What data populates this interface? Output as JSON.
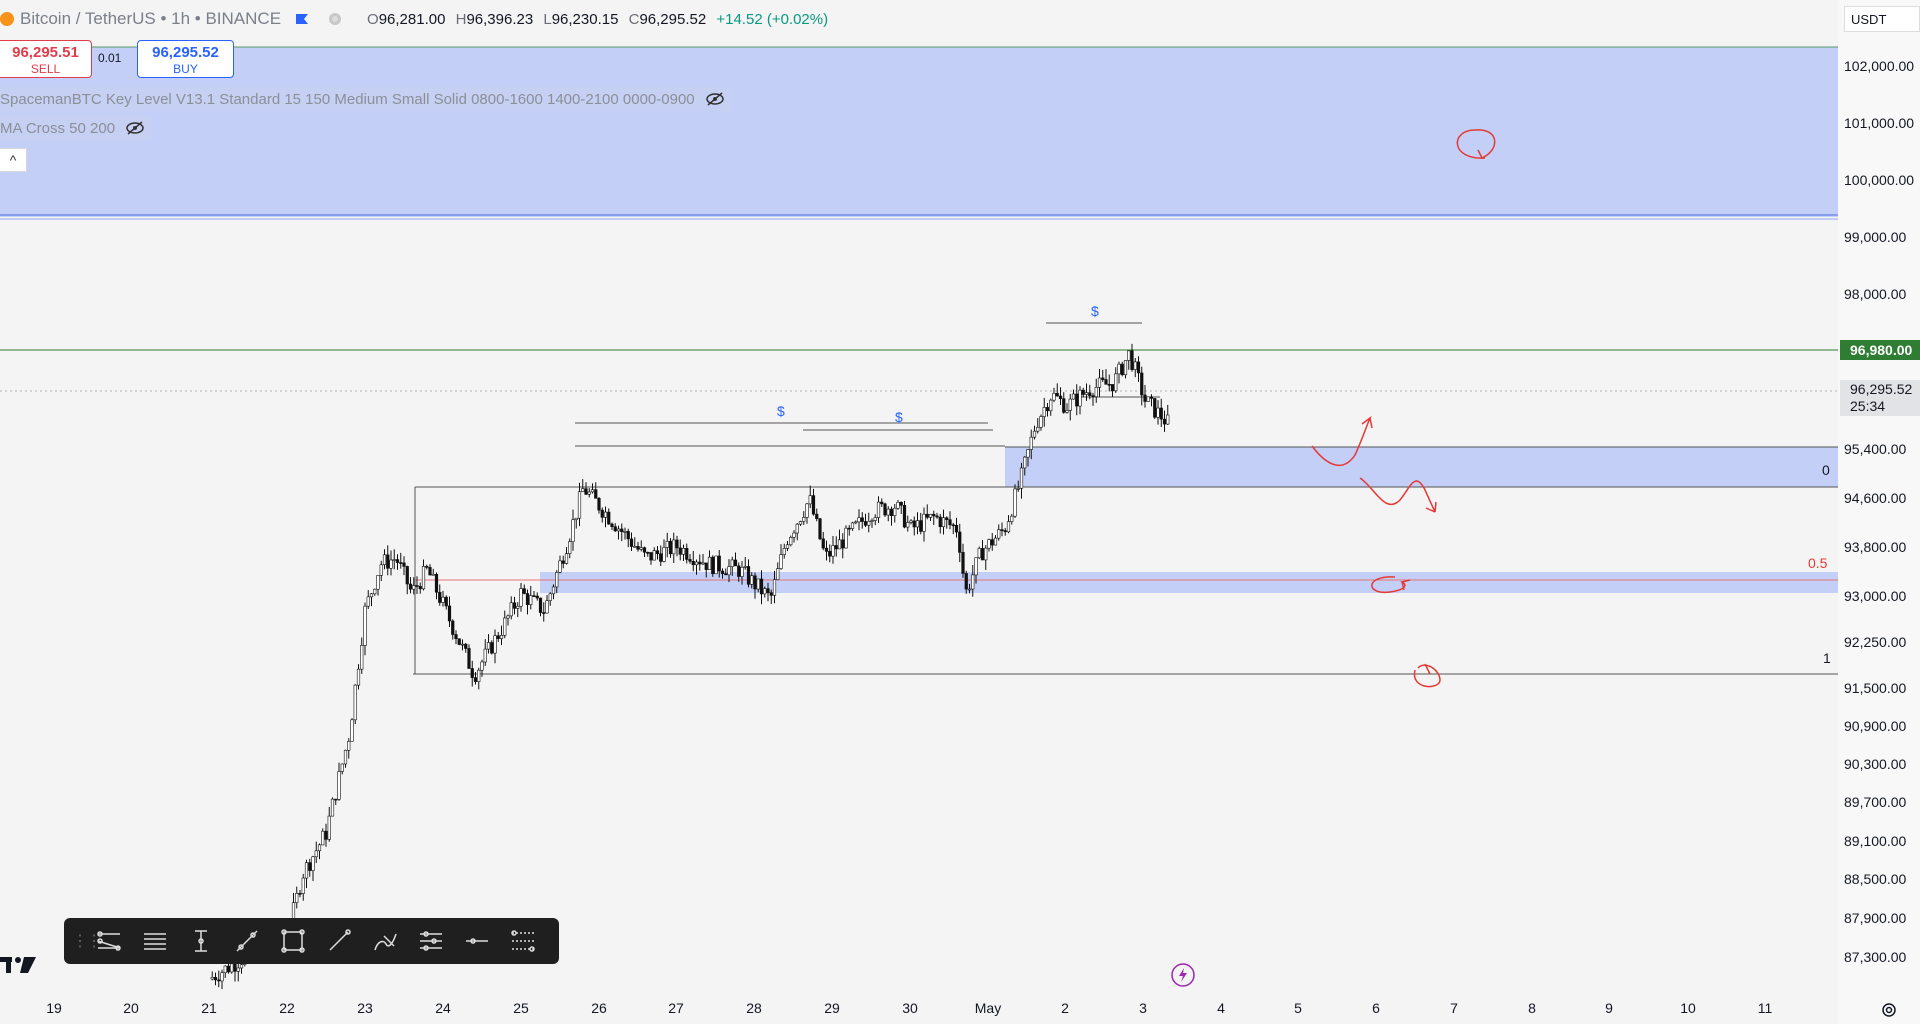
{
  "header": {
    "symbol_title": "Bitcoin / TetherUS • 1h • BINANCE",
    "ohlc": {
      "o_key": "O",
      "o_val": "96,281.00",
      "h_key": "H",
      "h_val": "96,396.23",
      "l_key": "L",
      "l_val": "96,230.15",
      "c_key": "C",
      "c_val": "96,295.52",
      "change": "+14.52 (+0.02%)"
    }
  },
  "trade": {
    "sell_price": "96,295.51",
    "sell_label": "SELL",
    "spread": "0.01",
    "buy_price": "96,295.52",
    "buy_label": "BUY"
  },
  "indicators": {
    "key_level": "SpacemanBTC Key Level V13.1 Standard 15 150 Medium Small Solid 0800-1600 1400-2100 0000-0900",
    "ma_cross": "MA Cross 50 200"
  },
  "collapse_glyph": "^",
  "price_axis": {
    "currency": "USDT",
    "labels": [
      "102,000.00",
      "101,000.00",
      "100,000.00",
      "99,000.00",
      "98,000.00",
      "95,400.00",
      "94,600.00",
      "93,800.00",
      "93,000.00",
      "92,250.00",
      "91,500.00",
      "90,900.00",
      "90,300.00",
      "89,700.00",
      "89,100.00",
      "88,500.00",
      "87,900.00",
      "87,300.00"
    ],
    "level_tag": "96,980.00",
    "last_price": "96,295.52",
    "countdown": "25:34"
  },
  "time_axis": {
    "labels": [
      "19",
      "20",
      "21",
      "22",
      "23",
      "24",
      "25",
      "26",
      "27",
      "28",
      "29",
      "30",
      "May",
      "2",
      "3",
      "4",
      "5",
      "6",
      "7",
      "8",
      "9",
      "10",
      "11"
    ]
  },
  "fib_labels": {
    "zero": "0",
    "half": "0.5",
    "one": "1"
  },
  "liquidity_marks": [
    "$",
    "$",
    "$"
  ],
  "colors": {
    "zone_fill": "#c3cff7",
    "up_candle": "#ffffff",
    "down_candle": "#111111",
    "green_level": "#2e7d32",
    "drawing_red": "#e53935",
    "dollar_blue": "#2962ff"
  },
  "toolbar": {
    "tools": [
      "multi-line-icon",
      "horizontal-lines-icon",
      "vertical-cursor-icon",
      "trend-line-icon",
      "rectangle-icon",
      "ray-icon",
      "brush-icon",
      "levels-icon",
      "horizontal-line-icon",
      "fib-settings-icon"
    ]
  },
  "chart_data": {
    "type": "candlestick",
    "x_unit": "day",
    "ylim": [
      86700,
      102600
    ],
    "series_closes": [
      {
        "x": 21.0,
        "price": 86800
      },
      {
        "x": 21.6,
        "price": 87300
      },
      {
        "x": 22.0,
        "price": 87500
      },
      {
        "x": 22.2,
        "price": 88600
      },
      {
        "x": 22.5,
        "price": 89300
      },
      {
        "x": 22.8,
        "price": 91000
      },
      {
        "x": 23.0,
        "price": 93100
      },
      {
        "x": 23.2,
        "price": 93900
      },
      {
        "x": 23.4,
        "price": 94000
      },
      {
        "x": 23.6,
        "price": 93400
      },
      {
        "x": 23.8,
        "price": 93800
      },
      {
        "x": 24.0,
        "price": 93200
      },
      {
        "x": 24.4,
        "price": 92000
      },
      {
        "x": 24.8,
        "price": 92900
      },
      {
        "x": 25.0,
        "price": 93400
      },
      {
        "x": 25.3,
        "price": 93100
      },
      {
        "x": 25.6,
        "price": 94300
      },
      {
        "x": 25.8,
        "price": 95200
      },
      {
        "x": 26.2,
        "price": 94600
      },
      {
        "x": 26.6,
        "price": 94000
      },
      {
        "x": 27.0,
        "price": 94200
      },
      {
        "x": 27.4,
        "price": 93900
      },
      {
        "x": 27.8,
        "price": 93800
      },
      {
        "x": 28.2,
        "price": 93300
      },
      {
        "x": 28.4,
        "price": 94300
      },
      {
        "x": 28.7,
        "price": 95000
      },
      {
        "x": 28.9,
        "price": 94000
      },
      {
        "x": 29.2,
        "price": 94400
      },
      {
        "x": 29.5,
        "price": 94800
      },
      {
        "x": 29.8,
        "price": 94900
      },
      {
        "x": 30.0,
        "price": 94500
      },
      {
        "x": 30.3,
        "price": 94700
      },
      {
        "x": 30.6,
        "price": 94500
      },
      {
        "x": 30.7,
        "price": 93400
      },
      {
        "x": 30.9,
        "price": 94100
      },
      {
        "x": 31.2,
        "price": 94500
      },
      {
        "x": 31.4,
        "price": 95300
      },
      {
        "x": 31.6,
        "price": 96300
      },
      {
        "x": 31.8,
        "price": 96800
      },
      {
        "x": 32.0,
        "price": 96600
      },
      {
        "x": 32.3,
        "price": 96900
      },
      {
        "x": 32.6,
        "price": 97000
      },
      {
        "x": 32.8,
        "price": 97500
      },
      {
        "x": 33.0,
        "price": 96700
      },
      {
        "x": 33.3,
        "price": 96300
      }
    ]
  }
}
